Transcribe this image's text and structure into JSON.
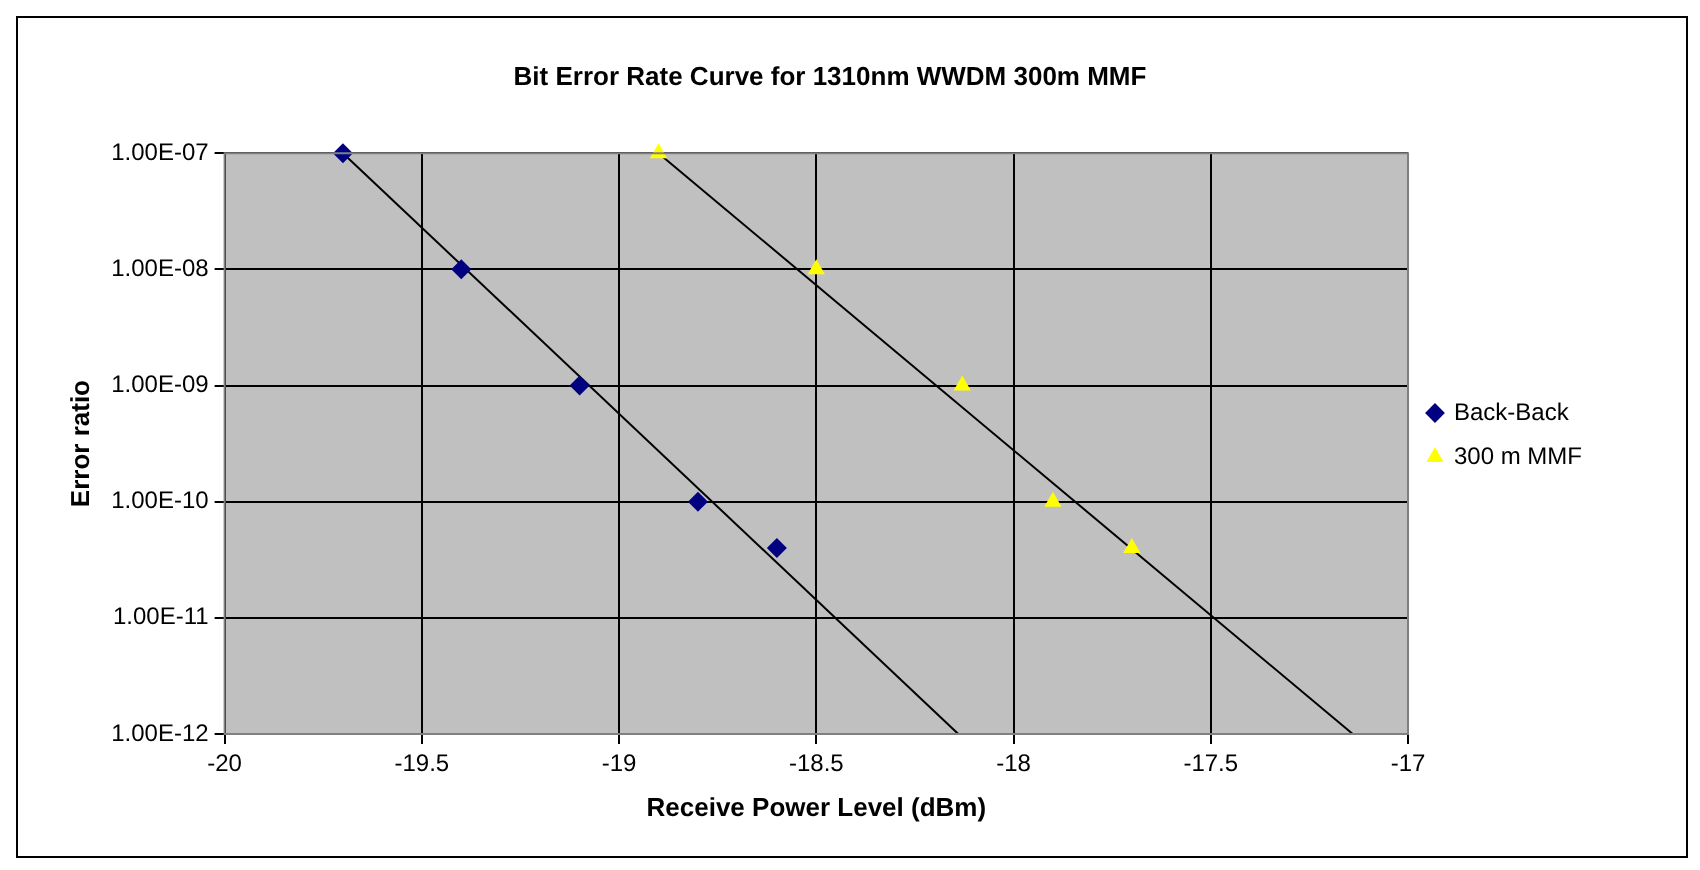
{
  "chart_data": {
    "type": "scatter",
    "title": "Bit Error Rate Curve for 1310nm WWDM 300m MMF",
    "xlabel": "Receive Power Level (dBm)",
    "ylabel": "Error ratio",
    "series": [
      {
        "name": "Back-Back",
        "color": "#000080",
        "marker": "diamond",
        "x": [
          -19.7,
          -19.4,
          -19.1,
          -18.8,
          -18.6
        ],
        "values": [
          1e-07,
          1e-08,
          1e-09,
          1e-10,
          4e-11
        ]
      },
      {
        "name": "300 m MMF",
        "color": "#ffff00",
        "marker": "triangle",
        "x": [
          -18.9,
          -18.5,
          -18.13,
          -17.9,
          -17.7
        ],
        "values": [
          1e-07,
          1e-08,
          1e-09,
          1e-10,
          4e-11
        ]
      },
      {
        "type": "line",
        "color": "#000000",
        "marker": "none",
        "x": [
          -19.7,
          -18.14
        ],
        "values": [
          1e-07,
          1e-12
        ]
      },
      {
        "type": "line",
        "color": "#000000",
        "marker": "none",
        "x": [
          -18.9,
          -17.14
        ],
        "values": [
          1e-07,
          1e-12
        ]
      }
    ],
    "log": "y",
    "xlim": [
      -20,
      -17
    ],
    "xticks": [
      -20,
      -19.5,
      -19,
      -18.5,
      -18,
      -17.5,
      -17
    ],
    "ylim": [
      1e-12,
      1e-07
    ],
    "yticks": [
      {
        "value": 1e-12,
        "label": "1.00E-12"
      },
      {
        "value": 1e-11,
        "label": "1.00E-11"
      },
      {
        "value": 1e-10,
        "label": "1.00E-10"
      },
      {
        "value": 1e-09,
        "label": "1.00E-09"
      },
      {
        "value": 1e-08,
        "label": "1.00E-08"
      },
      {
        "value": 1e-07,
        "label": "1.00E-07"
      }
    ],
    "grid": true,
    "legend": "right"
  }
}
